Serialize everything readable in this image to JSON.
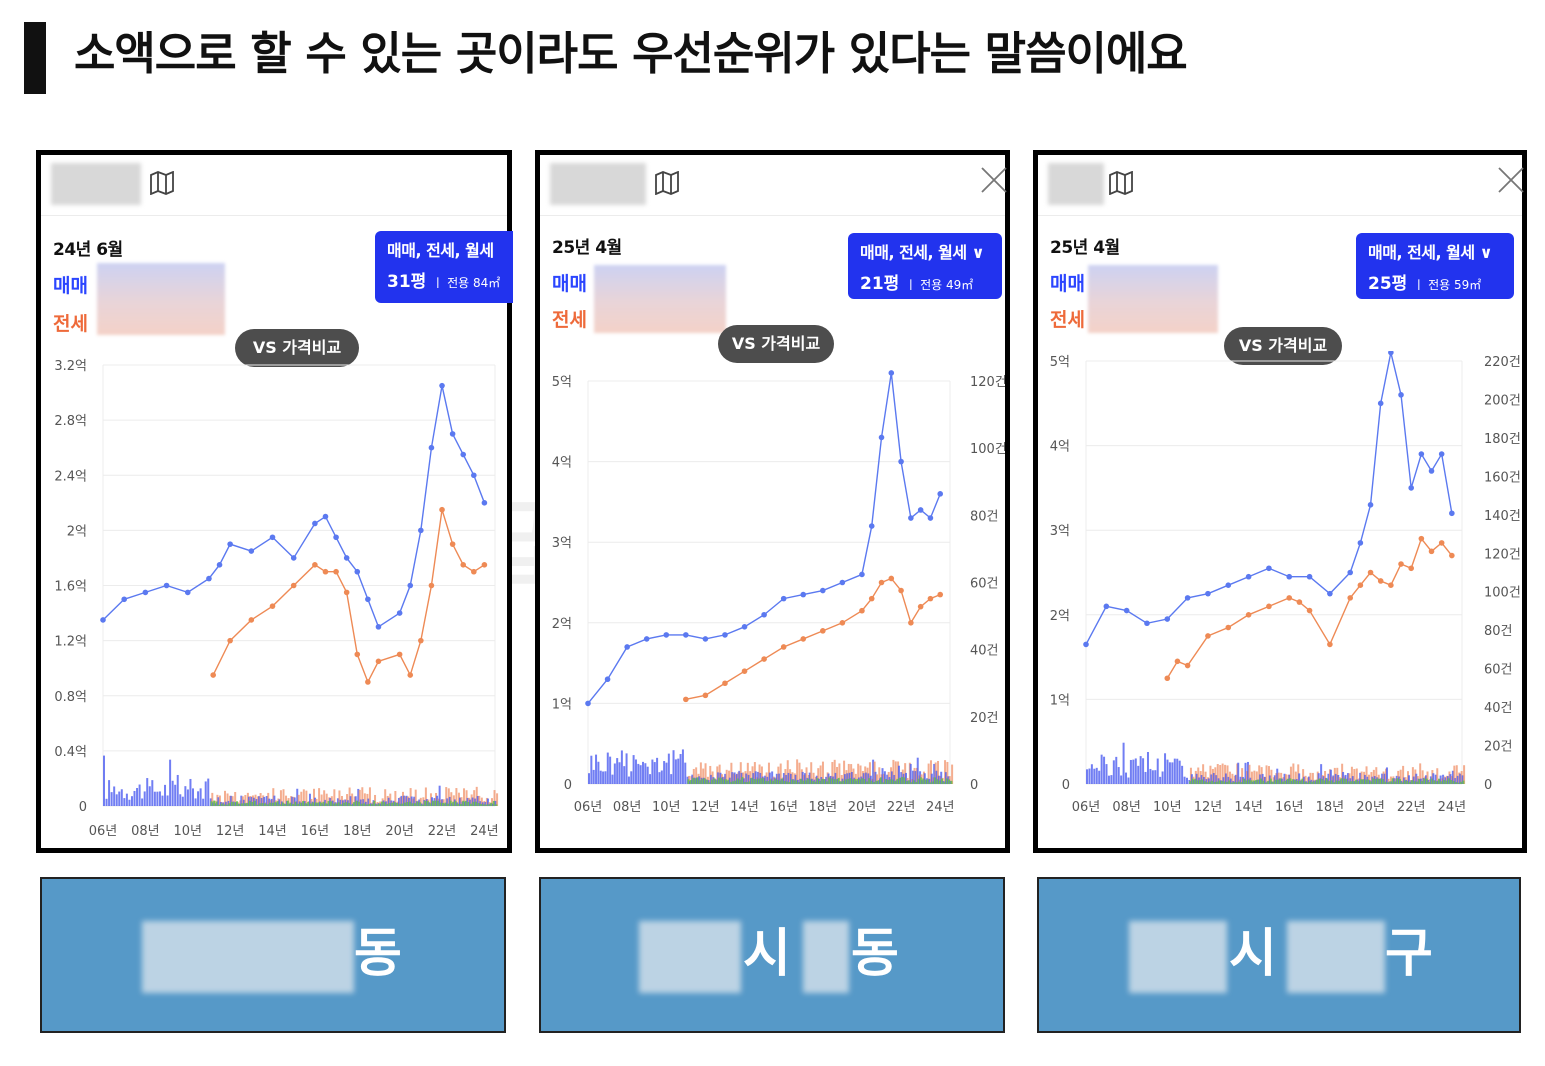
{
  "title": "소액으로 할 수 있는 곳이라도 우선순위가 있다는 말씀이에요",
  "watermark": "월급쟁이부자들",
  "icons": {
    "map": "map-icon",
    "close": "close-icon"
  },
  "colors": {
    "sale": "#5b79f0",
    "rent": "#ee8a55",
    "monthly": "#6cbf4f",
    "type_box": "#2233ee"
  },
  "panels": [
    {
      "date": "24년 6월",
      "sale_label": "매매",
      "rent_label": "전세",
      "type_line": "매매, 전세, 월세",
      "area_main": "31평",
      "area_sub": "전용 84㎡",
      "vs_button": "VS 가격비교",
      "region_suffix": "동"
    },
    {
      "date": "25년 4월",
      "sale_label": "매매",
      "rent_label": "전세",
      "type_line": "매매, 전세, 월세 ∨",
      "area_main": "21평",
      "area_sub": "전용 49㎡",
      "vs_button": "VS 가격비교",
      "region_mid": "시",
      "region_suffix": "동"
    },
    {
      "date": "25년 4월",
      "sale_label": "매매",
      "rent_label": "전세",
      "type_line": "매매, 전세, 월세 ∨",
      "area_main": "25평",
      "area_sub": "전용 59㎡",
      "vs_button": "VS 가격비교",
      "region_mid": "시",
      "region_suffix": "구"
    }
  ],
  "chart_data": [
    {
      "type": "line",
      "x_ticks": [
        "06년",
        "08년",
        "10년",
        "12년",
        "14년",
        "16년",
        "18년",
        "20년",
        "22년",
        "24년"
      ],
      "xlim": [
        2006,
        2024.5
      ],
      "y_ticks": [
        "0",
        "0.4억",
        "0.8억",
        "1.2억",
        "1.6억",
        "2억",
        "2.4억",
        "2.8억",
        "3.2억"
      ],
      "ylim": [
        0,
        3.2
      ],
      "series": [
        {
          "x": [
            2006,
            2007,
            2008,
            2009,
            2010,
            2011,
            2011.5,
            2012,
            2013,
            2014,
            2015,
            2016,
            2016.5,
            2017,
            2017.5,
            2018,
            2018.5,
            2019,
            2020,
            2020.5,
            2021,
            2021.5,
            2022,
            2022.5,
            2023,
            2023.5,
            2024
          ],
          "values": [
            1.35,
            1.5,
            1.55,
            1.6,
            1.55,
            1.65,
            1.75,
            1.9,
            1.85,
            1.95,
            1.8,
            2.05,
            2.1,
            1.95,
            1.8,
            1.7,
            1.5,
            1.3,
            1.4,
            1.6,
            2.0,
            2.6,
            3.05,
            2.7,
            2.55,
            2.4,
            2.2
          ]
        },
        {
          "x": [
            2011.2,
            2012,
            2013,
            2014,
            2015,
            2016,
            2016.5,
            2017,
            2017.5,
            2018,
            2018.5,
            2019,
            2020,
            2020.5,
            2021,
            2021.5,
            2022,
            2022.5,
            2023,
            2023.5,
            2024
          ],
          "values": [
            0.95,
            1.2,
            1.35,
            1.45,
            1.6,
            1.75,
            1.7,
            1.7,
            1.55,
            1.1,
            0.9,
            1.05,
            1.1,
            0.95,
            1.2,
            1.6,
            2.15,
            1.9,
            1.75,
            1.7,
            1.75
          ]
        }
      ]
    },
    {
      "type": "line",
      "x_ticks": [
        "06년",
        "08년",
        "10년",
        "12년",
        "14년",
        "16년",
        "18년",
        "20년",
        "22년",
        "24년"
      ],
      "xlim": [
        2006,
        2024.5
      ],
      "y_ticks": [
        "0",
        "1억",
        "2억",
        "3억",
        "4억",
        "5억"
      ],
      "ylim": [
        0,
        5
      ],
      "y2_ticks": [
        "0",
        "20건",
        "40건",
        "60건",
        "80건",
        "100건",
        "120건"
      ],
      "y2lim": [
        0,
        120
      ],
      "series": [
        {
          "x": [
            2006,
            2007,
            2008,
            2009,
            2010,
            2011,
            2012,
            2013,
            2014,
            2015,
            2016,
            2017,
            2018,
            2019,
            2020,
            2020.5,
            2021,
            2021.5,
            2022,
            2022.5,
            2023,
            2023.5,
            2024
          ],
          "values": [
            1.0,
            1.3,
            1.7,
            1.8,
            1.85,
            1.85,
            1.8,
            1.85,
            1.95,
            2.1,
            2.3,
            2.35,
            2.4,
            2.5,
            2.6,
            3.2,
            4.3,
            5.1,
            4.0,
            3.3,
            3.4,
            3.3,
            3.6
          ]
        },
        {
          "x": [
            2011,
            2012,
            2013,
            2014,
            2015,
            2016,
            2017,
            2018,
            2019,
            2020,
            2020.5,
            2021,
            2021.5,
            2022,
            2022.5,
            2023,
            2023.5,
            2024
          ],
          "values": [
            1.05,
            1.1,
            1.25,
            1.4,
            1.55,
            1.7,
            1.8,
            1.9,
            2.0,
            2.15,
            2.3,
            2.5,
            2.55,
            2.4,
            2.0,
            2.2,
            2.3,
            2.35
          ]
        }
      ]
    },
    {
      "type": "line",
      "x_ticks": [
        "06년",
        "08년",
        "10년",
        "12년",
        "14년",
        "16년",
        "18년",
        "20년",
        "22년",
        "24년"
      ],
      "xlim": [
        2006,
        2024.5
      ],
      "y_ticks": [
        "0",
        "1억",
        "2억",
        "3억",
        "4억",
        "5억"
      ],
      "ylim": [
        0,
        5
      ],
      "y2_ticks": [
        "0",
        "20건",
        "40건",
        "60건",
        "80건",
        "100건",
        "120건",
        "140건",
        "160건",
        "180건",
        "200건",
        "220건"
      ],
      "y2lim": [
        0,
        220
      ],
      "series": [
        {
          "x": [
            2006,
            2007,
            2008,
            2009,
            2010,
            2011,
            2012,
            2013,
            2014,
            2015,
            2016,
            2017,
            2018,
            2019,
            2019.5,
            2020,
            2020.5,
            2021,
            2021.5,
            2022,
            2022.5,
            2023,
            2023.5,
            2024
          ],
          "values": [
            1.65,
            2.1,
            2.05,
            1.9,
            1.95,
            2.2,
            2.25,
            2.35,
            2.45,
            2.55,
            2.45,
            2.45,
            2.25,
            2.5,
            2.85,
            3.3,
            4.5,
            5.1,
            4.6,
            3.5,
            3.9,
            3.7,
            3.9,
            3.2
          ]
        },
        {
          "x": [
            2010,
            2010.5,
            2011,
            2012,
            2013,
            2014,
            2015,
            2016,
            2016.5,
            2017,
            2018,
            2019,
            2019.5,
            2020,
            2020.5,
            2021,
            2021.5,
            2022,
            2022.5,
            2023,
            2023.5,
            2024
          ],
          "values": [
            1.25,
            1.45,
            1.4,
            1.75,
            1.85,
            2.0,
            2.1,
            2.2,
            2.15,
            2.05,
            1.65,
            2.2,
            2.35,
            2.5,
            2.4,
            2.35,
            2.6,
            2.55,
            2.9,
            2.75,
            2.85,
            2.7
          ]
        }
      ]
    }
  ]
}
